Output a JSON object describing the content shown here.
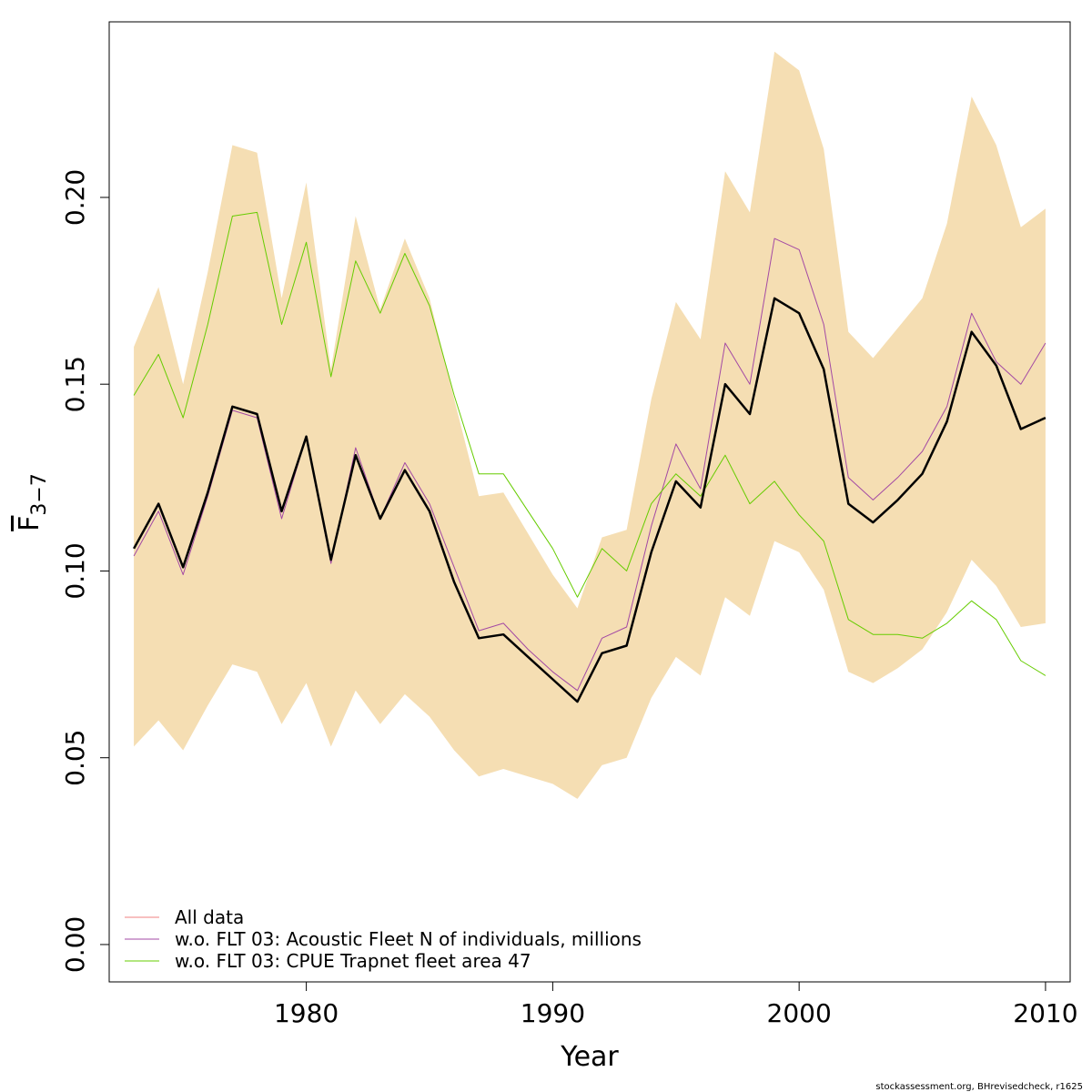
{
  "chart_data": {
    "type": "line",
    "xlabel": "Year",
    "ylabel": "F",
    "ylabel_sub": "3−7",
    "xlim": [
      1972,
      2011
    ],
    "ylim": [
      -0.01,
      0.247
    ],
    "x_ticks": [
      1980,
      1990,
      2000,
      2010
    ],
    "y_ticks": [
      "0.00",
      "0.05",
      "0.10",
      "0.15",
      "0.20"
    ],
    "x": [
      1973,
      1974,
      1975,
      1976,
      1977,
      1978,
      1979,
      1980,
      1981,
      1982,
      1983,
      1984,
      1985,
      1986,
      1987,
      1988,
      1989,
      1990,
      1991,
      1992,
      1993,
      1994,
      1995,
      1996,
      1997,
      1998,
      1999,
      2000,
      2001,
      2002,
      2003,
      2004,
      2005,
      2006,
      2007,
      2008,
      2009,
      2010
    ],
    "band": {
      "color": "#F5DEB3",
      "upper": [
        0.16,
        0.176,
        0.15,
        0.18,
        0.214,
        0.212,
        0.173,
        0.204,
        0.154,
        0.195,
        0.17,
        0.189,
        0.173,
        0.146,
        0.12,
        0.121,
        0.11,
        0.099,
        0.09,
        0.109,
        0.111,
        0.146,
        0.172,
        0.162,
        0.207,
        0.196,
        0.239,
        0.234,
        0.213,
        0.164,
        0.157,
        0.165,
        0.173,
        0.193,
        0.227,
        0.214,
        0.192,
        0.197
      ],
      "lower": [
        0.053,
        0.06,
        0.052,
        0.064,
        0.075,
        0.073,
        0.059,
        0.07,
        0.053,
        0.068,
        0.059,
        0.067,
        0.061,
        0.052,
        0.045,
        0.047,
        0.045,
        0.043,
        0.039,
        0.048,
        0.05,
        0.066,
        0.077,
        0.072,
        0.093,
        0.088,
        0.108,
        0.105,
        0.095,
        0.073,
        0.07,
        0.074,
        0.079,
        0.089,
        0.103,
        0.096,
        0.085,
        0.086
      ]
    },
    "series": [
      {
        "name": "All data",
        "color": "#000000",
        "width": 2.5,
        "values": [
          0.106,
          0.118,
          0.101,
          0.121,
          0.144,
          0.142,
          0.116,
          0.136,
          0.103,
          0.131,
          0.114,
          0.127,
          0.116,
          0.097,
          0.082,
          0.083,
          0.077,
          0.071,
          0.065,
          0.078,
          0.08,
          0.105,
          0.124,
          0.117,
          0.15,
          0.142,
          0.173,
          0.169,
          0.154,
          0.118,
          0.113,
          0.119,
          0.126,
          0.14,
          0.164,
          0.155,
          0.138,
          0.141
        ]
      },
      {
        "name": "w.o. FLT 03: Acoustic Fleet  N of individuals, millions",
        "color": "#A349A4",
        "width": 1,
        "values": [
          0.104,
          0.116,
          0.099,
          0.12,
          0.143,
          0.141,
          0.114,
          0.136,
          0.102,
          0.133,
          0.114,
          0.129,
          0.118,
          0.101,
          0.084,
          0.086,
          0.079,
          0.073,
          0.068,
          0.082,
          0.085,
          0.112,
          0.134,
          0.122,
          0.161,
          0.15,
          0.189,
          0.186,
          0.166,
          0.125,
          0.119,
          0.125,
          0.132,
          0.144,
          0.169,
          0.156,
          0.15,
          0.161
        ]
      },
      {
        "name": "w.o. FLT 03: CPUE Trapnet fleet area 47",
        "color": "#66CC00",
        "width": 1,
        "values": [
          0.147,
          0.158,
          0.141,
          0.166,
          0.195,
          0.196,
          0.166,
          0.188,
          0.152,
          0.183,
          0.169,
          0.185,
          0.171,
          0.147,
          0.126,
          0.126,
          0.116,
          0.106,
          0.093,
          0.106,
          0.1,
          0.118,
          0.126,
          0.12,
          0.131,
          0.118,
          0.124,
          0.115,
          0.108,
          0.087,
          0.083,
          0.083,
          0.082,
          0.086,
          0.092,
          0.087,
          0.076,
          0.072
        ]
      }
    ],
    "legend": {
      "placement": "bottom-left",
      "entries": [
        {
          "label": "All data",
          "color": "#F08080"
        },
        {
          "label": "w.o. FLT 03: Acoustic Fleet  N of individuals, millions",
          "color": "#A349A4"
        },
        {
          "label": "w.o. FLT 03: CPUE Trapnet fleet area 47",
          "color": "#66CC00"
        }
      ]
    }
  },
  "footer": {
    "credit": "stockassessment.org, BHrevisedcheck, r1625"
  }
}
